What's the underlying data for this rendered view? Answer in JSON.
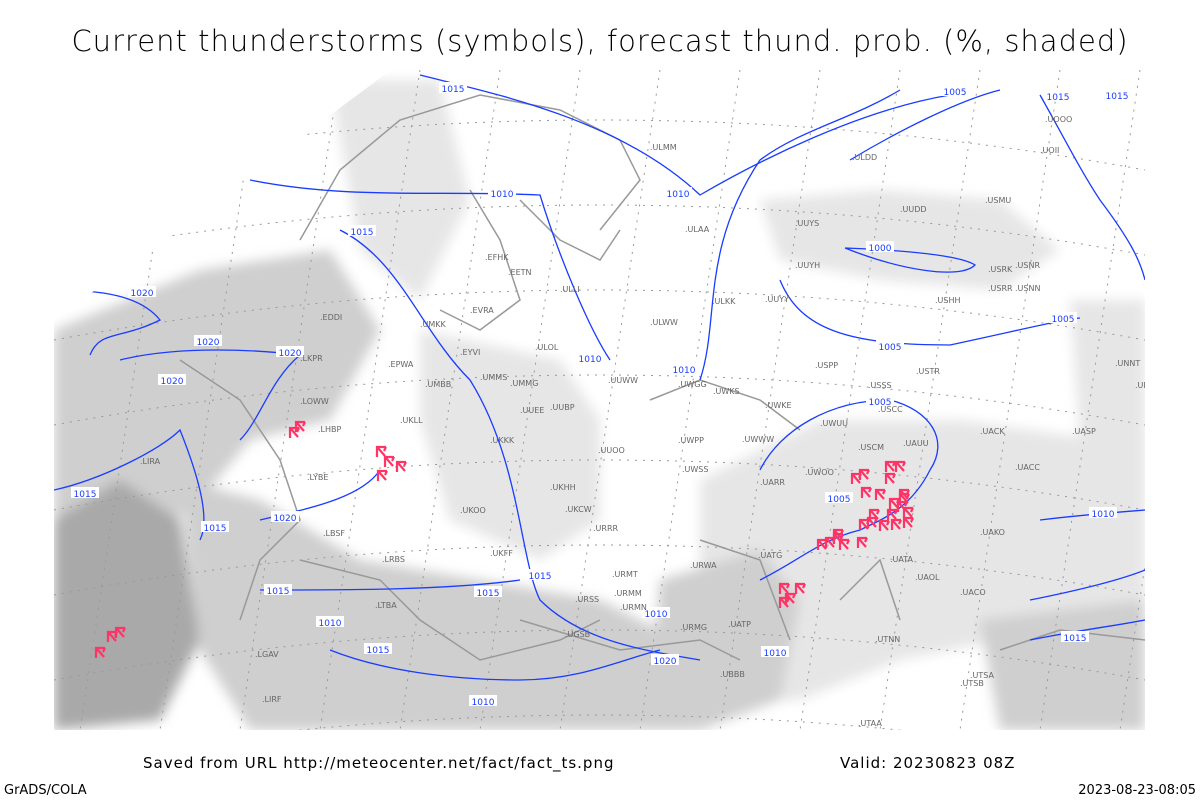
{
  "title": "Current thunderstorms (symbols), forecast thund. prob. (%, shaded)",
  "footer": {
    "source": "Saved from URL http://meteocenter.net/fact/fact_ts.png",
    "valid": "Valid: 20230823 08Z",
    "software": "GrADS/COLA",
    "generated": "2023-08-23-08:05"
  },
  "colors": {
    "isobar": "#1a3cff",
    "coastline": "#999999",
    "thunderstorm_symbol": "#ff3366",
    "shading_light": "#e6e6e6",
    "shading_mid": "#cfcfcf",
    "shading_dark": "#a9a9a9"
  },
  "isobar_labels": [
    "1015",
    "1010",
    "1015",
    "1005",
    "1010",
    "1015",
    "1020",
    "1020",
    "1020",
    "1020",
    "1015",
    "1015",
    "1020",
    "1015",
    "1015",
    "1010",
    "1015",
    "1015",
    "1010",
    "1010",
    "1020",
    "1010",
    "1005",
    "1000",
    "1005",
    "1005",
    "1005",
    "1010",
    "1010",
    "1015",
    "1015",
    "1010"
  ],
  "stations": [
    "ULMM",
    "ULAA",
    "ULLI",
    "ULOL",
    "ULWW",
    "ULKK",
    "UUYY",
    "UUYH",
    "UUYS",
    "UUDD",
    "ULDD",
    "USRK",
    "USRR",
    "USNN",
    "USNR",
    "USCC",
    "USSS",
    "USTR",
    "USMU",
    "USHH",
    "USPP",
    "UWKS",
    "UWGG",
    "UWKE",
    "UWWW",
    "UWUU",
    "UWPP",
    "UWSS",
    "UWOO",
    "UARR",
    "USCM",
    "UAUU",
    "UACK",
    "UACC",
    "UASP",
    "UAKO",
    "UATG",
    "UATA",
    "UAOL",
    "UACO",
    "UATP",
    "URWA",
    "URMT",
    "URMM",
    "URMN",
    "URMG",
    "URSS",
    "UGSB",
    "UBBB",
    "UTAA",
    "UTNN",
    "UTSA",
    "UTSB",
    "UNNT",
    "UNBB",
    "UOOO",
    "UOII",
    "EFHK",
    "EETN",
    "EVRA",
    "EYVI",
    "EPWA",
    "EDDI",
    "LKPR",
    "LOWW",
    "LHBP",
    "UKLL",
    "UKKK",
    "UKHH",
    "UKOO",
    "UKFF",
    "UMMS",
    "UMMG",
    "UMBB",
    "UUEE",
    "UUBP",
    "UUOO",
    "UUWW",
    "URRR",
    "UKCW",
    "LBSF",
    "LRBS",
    "LTBA",
    "LYBE",
    "LIRA",
    "LGAV",
    "UMKK",
    "LIRF"
  ],
  "thunderstorm_count": 38
}
